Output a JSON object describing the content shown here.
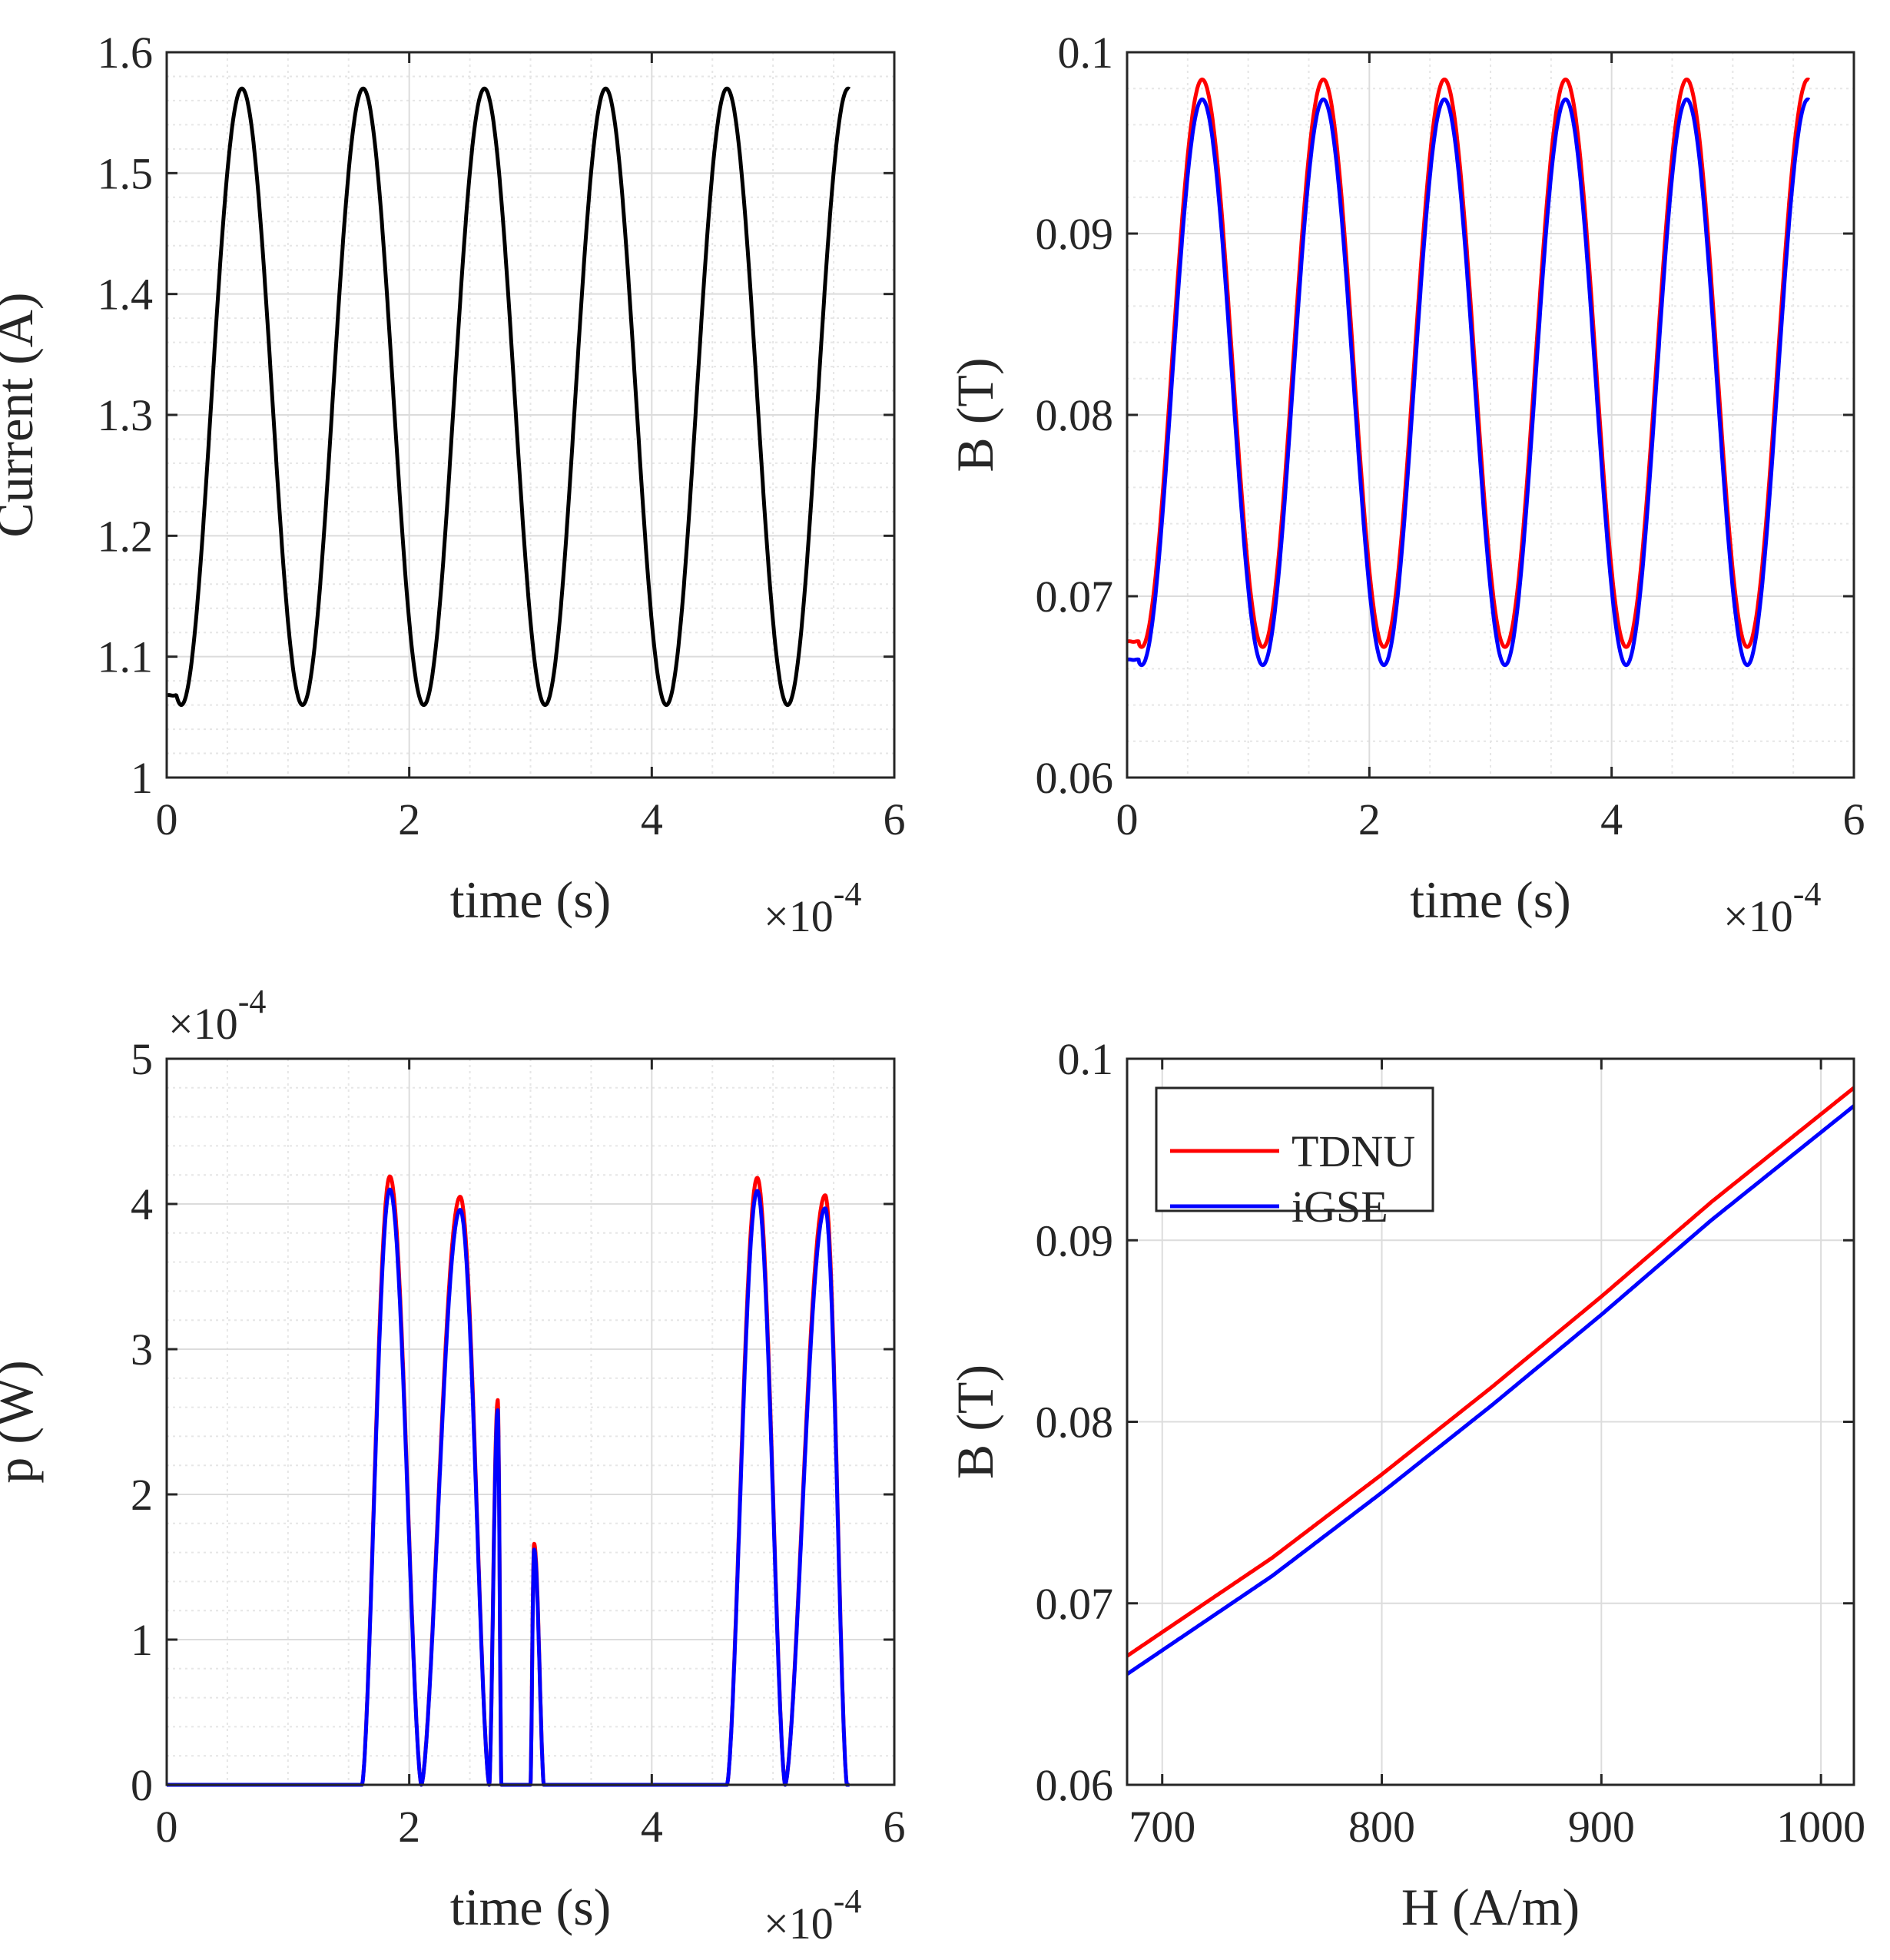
{
  "chart_data": [
    {
      "type": "line",
      "id": "current",
      "xlabel": "time (s)",
      "ylabel": "Current (A)",
      "xlim": [
        0,
        6
      ],
      "ylim": [
        1,
        1.6
      ],
      "x_multiplier": "×10",
      "x_multiplier_exp": "-4",
      "xticks": [
        "0",
        "2",
        "4",
        "6"
      ],
      "yticks": [
        "1",
        "1.1",
        "1.2",
        "1.3",
        "1.4",
        "1.5",
        "1.6"
      ],
      "grid": true,
      "minor_grid": true,
      "series": [
        {
          "name": "Current",
          "color": "#000000",
          "kind": "sine",
          "start": 0.08,
          "end": 5.63,
          "period": 1.0,
          "peak_x": 0.62,
          "max": 1.57,
          "min": 1.06,
          "initial": 1.068
        }
      ]
    },
    {
      "type": "line",
      "id": "b-time",
      "xlabel": "time (s)",
      "ylabel": "B (T)",
      "xlim": [
        0,
        6
      ],
      "ylim": [
        0.06,
        0.1
      ],
      "x_multiplier": "×10",
      "x_multiplier_exp": "-4",
      "xticks": [
        "0",
        "2",
        "4",
        "6"
      ],
      "yticks": [
        "0.06",
        "0.07",
        "0.08",
        "0.09",
        "0.1"
      ],
      "grid": true,
      "minor_grid": true,
      "series": [
        {
          "name": "TDNU",
          "color": "#ff0000",
          "kind": "sine",
          "start": 0.1,
          "end": 5.63,
          "period": 1.0,
          "peak_x": 0.62,
          "max": 0.0985,
          "min": 0.0672,
          "initial": 0.0675
        },
        {
          "name": "iGSE",
          "color": "#0000ff",
          "kind": "sine",
          "start": 0.1,
          "end": 5.63,
          "period": 1.0,
          "peak_x": 0.62,
          "max": 0.0974,
          "min": 0.0662,
          "initial": 0.0665
        }
      ]
    },
    {
      "type": "line",
      "id": "power",
      "xlabel": "time (s)",
      "ylabel": "p (W)",
      "xlim": [
        0,
        6
      ],
      "ylim": [
        0,
        5
      ],
      "x_multiplier": "×10",
      "x_multiplier_exp": "-4",
      "y_multiplier": "×10",
      "y_multiplier_exp": "-4",
      "xticks": [
        "0",
        "2",
        "4",
        "6"
      ],
      "yticks": [
        "0",
        "1",
        "2",
        "3",
        "4",
        "5"
      ],
      "grid": true,
      "minor_grid": true,
      "series": [
        {
          "name": "TDNU",
          "color": "#ff0000",
          "kind": "pulses",
          "end": 5.63,
          "pulses": [
            [
              1.61,
              1.84,
              2.1,
              4.19
            ],
            [
              2.1,
              2.42,
              2.66,
              4.05
            ],
            [
              2.66,
              2.73,
              2.76,
              2.65
            ],
            [
              3.0,
              3.03,
              3.11,
              1.66
            ],
            [
              4.62,
              4.87,
              5.1,
              4.18
            ],
            [
              5.1,
              5.43,
              5.61,
              4.06
            ]
          ]
        },
        {
          "name": "iGSE",
          "color": "#0000ff",
          "kind": "pulses",
          "end": 5.63,
          "pulses": [
            [
              1.61,
              1.84,
              2.1,
              4.1
            ],
            [
              2.1,
              2.42,
              2.66,
              3.96
            ],
            [
              2.66,
              2.73,
              2.76,
              2.58
            ],
            [
              3.0,
              3.03,
              3.11,
              1.62
            ],
            [
              4.62,
              4.87,
              5.1,
              4.09
            ],
            [
              5.1,
              5.43,
              5.61,
              3.97
            ]
          ]
        }
      ]
    },
    {
      "type": "line",
      "id": "bh",
      "xlabel": "H (A/m)",
      "ylabel": "B (T)",
      "xlim": [
        684,
        1015
      ],
      "ylim": [
        0.06,
        0.1
      ],
      "xticks": [
        "700",
        "800",
        "900",
        "1000"
      ],
      "yticks": [
        "0.06",
        "0.07",
        "0.08",
        "0.09",
        "0.1"
      ],
      "grid": true,
      "minor_grid": false,
      "legend": "top-left",
      "series": [
        {
          "name": "TDNU",
          "color": "#ff0000",
          "kind": "curve",
          "x": [
            684,
            750,
            800,
            850,
            900,
            950,
            1015
          ],
          "y": [
            0.0671,
            0.0725,
            0.0771,
            0.0819,
            0.0869,
            0.0921,
            0.0984
          ]
        },
        {
          "name": "iGSE",
          "color": "#0000ff",
          "kind": "curve",
          "x": [
            684,
            750,
            800,
            850,
            900,
            950,
            1015
          ],
          "y": [
            0.0661,
            0.0715,
            0.0761,
            0.0809,
            0.0859,
            0.0911,
            0.0974
          ]
        }
      ]
    }
  ]
}
